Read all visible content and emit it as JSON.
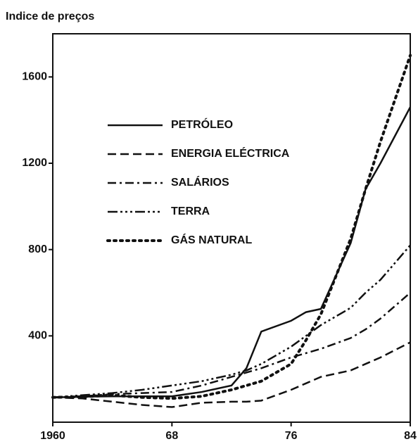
{
  "chart_data": {
    "type": "line",
    "title": "Indice de preços",
    "x": [
      1960,
      1962,
      1964,
      1966,
      1968,
      1970,
      1972,
      1973,
      1974,
      1976,
      1977,
      1978,
      1980,
      1981,
      1982,
      1984
    ],
    "series": [
      {
        "name": "PETRÓLEO",
        "color": "#111111",
        "dash": "solid",
        "values": [
          115,
          118,
          120,
          120,
          120,
          140,
          170,
          250,
          420,
          470,
          510,
          525,
          830,
          1080,
          1200,
          1460
        ]
      },
      {
        "name": "ENERGIA ELÉCTRICA",
        "color": "#111111",
        "dash": "dashed",
        "values": [
          115,
          110,
          95,
          80,
          70,
          90,
          95,
          95,
          100,
          150,
          180,
          210,
          240,
          270,
          300,
          370
        ]
      },
      {
        "name": "SALÁRIOS",
        "color": "#111111",
        "dash": "dashdot",
        "values": [
          115,
          120,
          130,
          135,
          140,
          170,
          210,
          230,
          250,
          300,
          320,
          340,
          390,
          430,
          480,
          600
        ]
      },
      {
        "name": "TERRA",
        "color": "#111111",
        "dash": "dashdotdotdot",
        "values": [
          115,
          125,
          135,
          150,
          170,
          190,
          220,
          240,
          270,
          350,
          400,
          450,
          530,
          600,
          660,
          820
        ]
      },
      {
        "name": "GÁS NATURAL",
        "color": "#111111",
        "dash": "dotted",
        "values": [
          115,
          118,
          125,
          115,
          110,
          120,
          150,
          170,
          190,
          270,
          380,
          500,
          850,
          1080,
          1300,
          1700
        ]
      }
    ],
    "xlim": [
      1960,
      1984
    ],
    "xticks": [
      1960,
      {
        "value": 1968,
        "label": "68"
      },
      {
        "value": 1976,
        "label": "76"
      },
      {
        "value": 1984,
        "label": "84"
      }
    ],
    "ylim": [
      0,
      1800
    ],
    "yticks": [
      400,
      800,
      1200,
      1600
    ],
    "grid": false,
    "legend": "upper-left"
  }
}
